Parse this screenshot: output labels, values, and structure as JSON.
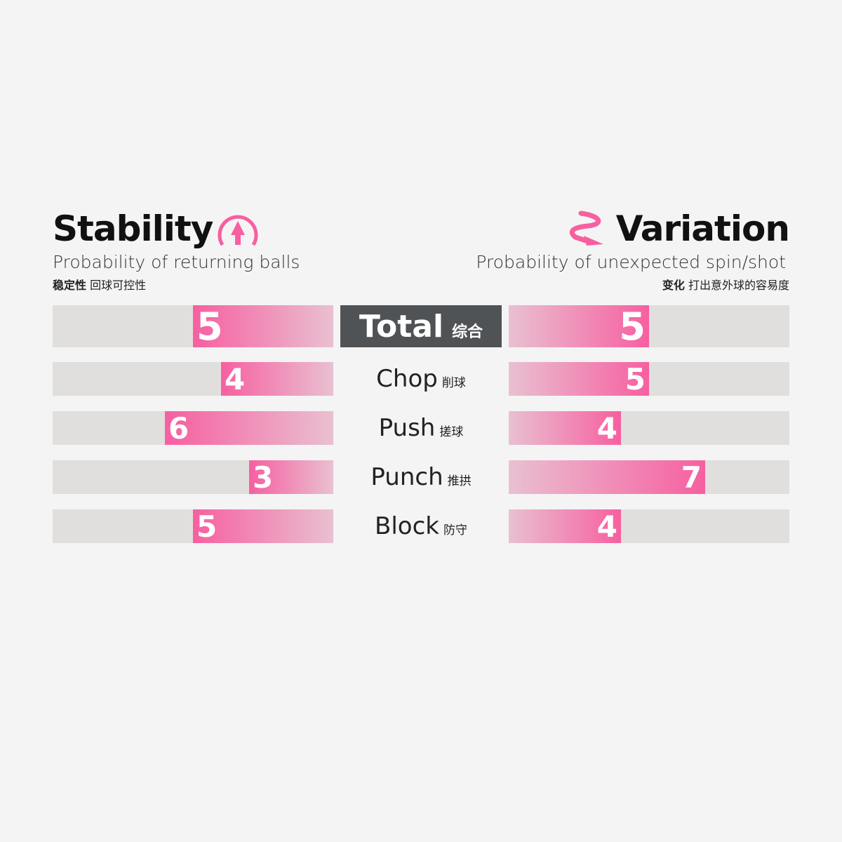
{
  "left": {
    "title": "Stability",
    "subtitle": "Probability of returning balls",
    "cn_bold": "稳定性",
    "cn": "回球可控性",
    "icon": "circle-arrow-up-icon"
  },
  "right": {
    "title": "Variation",
    "subtitle": "Probability of unexpected spin/shot",
    "cn_bold": "变化",
    "cn": "打出意外球的容易度",
    "icon": "curved-arrow-icon"
  },
  "colors": {
    "accent": "#f75fa0",
    "light": "#e9c0d1",
    "track": "#e0dfdd",
    "total_bg": "#505355"
  },
  "chart_data": {
    "type": "bar",
    "orientation": "horizontal-diverging",
    "xlim": [
      0,
      10
    ],
    "categories": [
      {
        "label": "Total",
        "cn": "综合"
      },
      {
        "label": "Chop",
        "cn": "削球"
      },
      {
        "label": "Push",
        "cn": "搓球"
      },
      {
        "label": "Punch",
        "cn": "推拱"
      },
      {
        "label": "Block",
        "cn": "防守"
      }
    ],
    "series": [
      {
        "name": "Stability",
        "values": [
          5,
          4,
          6,
          3,
          5
        ]
      },
      {
        "name": "Variation",
        "values": [
          5,
          5,
          4,
          7,
          4
        ]
      }
    ]
  }
}
